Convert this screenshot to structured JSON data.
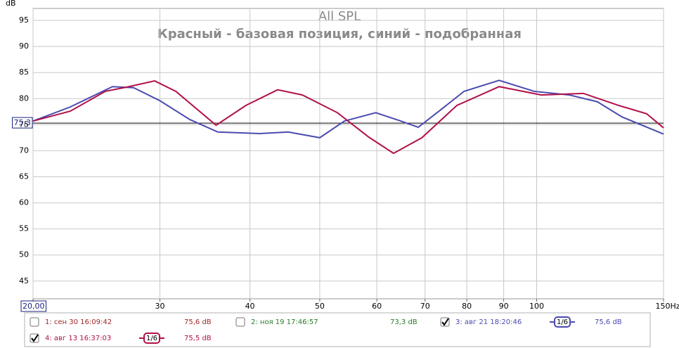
{
  "chart_data": {
    "type": "line",
    "title": "All SPL",
    "subtitle": "Красный - базовая позиция, синий - подобранная",
    "y_label": "dB",
    "log_x": true,
    "grid": true,
    "xlim": [
      20,
      150
    ],
    "ylim": [
      41.6,
      97.3
    ],
    "xticks": [
      {
        "value": 20,
        "label": "20,00"
      },
      30,
      40,
      50,
      60,
      70,
      80,
      90,
      100,
      {
        "value": 150,
        "label": "150Hz"
      }
    ],
    "yticks": [
      45,
      50,
      55,
      60,
      65,
      70,
      75,
      80,
      85,
      90,
      95
    ],
    "cursor": {
      "value": 75.3,
      "label": "75,3"
    },
    "series": [
      {
        "name": "1: сен 30 16:09:42",
        "color": "#a02828",
        "level": "75,6 dB",
        "checked": false
      },
      {
        "name": "2: ноя 19 17:46:57",
        "color": "#2a7a2a",
        "level": "73,3 dB",
        "checked": false
      },
      {
        "name": "3: авг 21 18:20:46",
        "color": "#4b4bb0",
        "level": "75,6 dB",
        "checked": true,
        "smoothing": "1/6",
        "x": [
          20,
          22.53,
          25.78,
          27.58,
          30,
          33.0,
          36.1,
          41.3,
          45.2,
          50.0,
          54.1,
          59.8,
          64.8,
          68.5,
          73.2,
          79.3,
          88.7,
          99.2,
          111.0,
          121.4,
          131.3,
          150
        ],
        "values": [
          75.7,
          78.4,
          82.3,
          82.1,
          79.6,
          76.0,
          73.6,
          73.3,
          73.6,
          72.5,
          75.7,
          77.3,
          75.7,
          74.5,
          77.6,
          81.4,
          83.5,
          81.4,
          80.7,
          79.4,
          76.5,
          73.2
        ]
      },
      {
        "name": "4: авг 13 16:37:03",
        "color": "#b0104a",
        "level": "75,5 dB",
        "checked": true,
        "smoothing": "1/6",
        "x": [
          20,
          22.53,
          25.2,
          26.96,
          29.5,
          31.56,
          35.9,
          39.5,
          43.7,
          47.3,
          52.9,
          58.5,
          63.3,
          69.3,
          77.5,
          88.7,
          101.5,
          116.1,
          129.9,
          142.1,
          150
        ],
        "values": [
          75.7,
          77.6,
          81.4,
          82.2,
          83.4,
          81.4,
          74.9,
          78.7,
          81.7,
          80.7,
          77.3,
          72.6,
          69.5,
          72.5,
          78.7,
          82.3,
          80.7,
          81.0,
          78.7,
          77.1,
          74.4
        ]
      }
    ]
  }
}
